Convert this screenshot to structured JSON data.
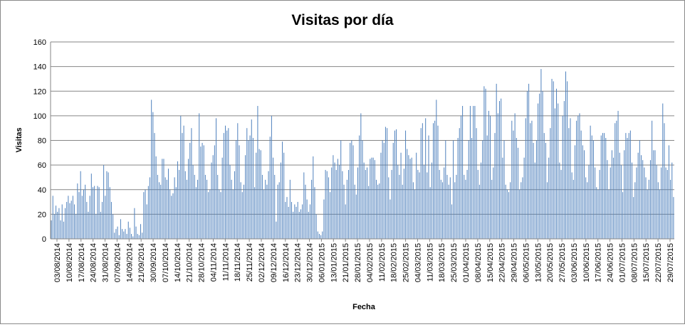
{
  "chart_data": {
    "type": "bar",
    "title": "Visitas por día",
    "xlabel": "Fecha",
    "ylabel": "Visitas",
    "ylim": [
      0,
      160
    ],
    "y_ticks": [
      0,
      20,
      40,
      60,
      80,
      100,
      120,
      140,
      160
    ],
    "grid": "horizontal",
    "legend": "none",
    "bar_color": "#4F81BD",
    "grid_color": "#868686",
    "x_tick_labels": [
      "03/08/2014",
      "10/08/2014",
      "17/08/2014",
      "24/08/2014",
      "31/08/2014",
      "07/09/2014",
      "14/09/2014",
      "21/09/2014",
      "30/09/2014",
      "07/10/2014",
      "14/10/2014",
      "21/10/2014",
      "28/10/2014",
      "04/11/2014",
      "11/11/2014",
      "18/11/2014",
      "25/11/2014",
      "02/12/2014",
      "09/12/2014",
      "16/12/2014",
      "23/12/2014",
      "30/12/2014",
      "06/01/2015",
      "13/01/2015",
      "21/01/2015",
      "28/01/2015",
      "04/02/2015",
      "11/02/2015",
      "18/02/2015",
      "25/02/2015",
      "04/03/2015",
      "11/03/2015",
      "18/03/2015",
      "25/03/2015",
      "01/04/2015",
      "08/04/2015",
      "15/04/2015",
      "22/04/2015",
      "29/04/2015",
      "06/05/2015",
      "13/05/2015",
      "20/05/2015",
      "27/05/2015",
      "03/06/2015",
      "10/06/2015",
      "17/06/2015",
      "24/06/2015",
      "01/07/2015",
      "08/07/2015",
      "15/07/2015",
      "22/07/2015",
      "29/07/2015"
    ],
    "values": [
      15,
      35,
      20,
      27,
      22,
      25,
      15,
      28,
      14,
      25,
      30,
      35,
      29,
      31,
      35,
      28,
      20,
      45,
      38,
      55,
      35,
      40,
      44,
      30,
      22,
      35,
      53,
      42,
      43,
      20,
      43,
      42,
      22,
      30,
      60,
      35,
      55,
      54,
      42,
      30,
      20,
      5,
      8,
      10,
      3,
      16,
      8,
      6,
      8,
      4,
      14,
      9,
      4,
      2,
      25,
      10,
      4,
      3,
      12,
      5,
      38,
      40,
      28,
      43,
      50,
      113,
      103,
      86,
      67,
      52,
      46,
      44,
      65,
      65,
      50,
      48,
      57,
      40,
      35,
      37,
      50,
      42,
      63,
      56,
      100,
      86,
      92,
      55,
      48,
      65,
      78,
      90,
      60,
      52,
      42,
      48,
      102,
      75,
      78,
      76,
      52,
      48,
      38,
      40,
      62,
      68,
      76,
      98,
      52,
      40,
      38,
      66,
      86,
      92,
      88,
      90,
      60,
      48,
      40,
      55,
      80,
      94,
      76,
      46,
      38,
      44,
      68,
      90,
      80,
      84,
      97,
      82,
      42,
      70,
      108,
      73,
      72,
      52,
      40,
      48,
      44,
      55,
      83,
      100,
      66,
      52,
      14,
      44,
      46,
      62,
      79,
      70,
      30,
      34,
      26,
      48,
      30,
      22,
      28,
      26,
      30,
      22,
      24,
      28,
      54,
      44,
      32,
      22,
      28,
      48,
      67,
      42,
      20,
      6,
      4,
      3,
      6,
      32,
      56,
      55,
      50,
      38,
      58,
      68,
      62,
      56,
      65,
      60,
      80,
      55,
      44,
      28,
      48,
      56,
      78,
      80,
      76,
      44,
      36,
      58,
      84,
      102,
      80,
      62,
      56,
      58,
      43,
      65,
      66,
      66,
      64,
      48,
      44,
      45,
      70,
      80,
      78,
      91,
      90,
      50,
      32,
      56,
      78,
      88,
      89,
      60,
      52,
      70,
      44,
      57,
      88,
      73,
      68,
      65,
      66,
      46,
      40,
      70,
      56,
      54,
      90,
      94,
      60,
      98,
      54,
      84,
      42,
      62,
      94,
      96,
      113,
      92,
      56,
      48,
      46,
      58,
      80,
      52,
      44,
      50,
      28,
      80,
      46,
      52,
      82,
      90,
      100,
      108,
      52,
      48,
      56,
      80,
      108,
      82,
      108,
      108,
      90,
      56,
      44,
      62,
      80,
      124,
      122,
      84,
      104,
      100,
      48,
      58,
      86,
      126,
      102,
      112,
      114,
      66,
      80,
      44,
      40,
      38,
      46,
      96,
      88,
      102,
      82,
      74,
      40,
      46,
      50,
      66,
      98,
      120,
      126,
      94,
      96,
      78,
      62,
      80,
      110,
      118,
      138,
      120,
      86,
      78,
      46,
      66,
      90,
      130,
      128,
      106,
      122,
      110,
      62,
      56,
      100,
      112,
      136,
      128,
      90,
      98,
      54,
      48,
      76,
      96,
      100,
      102,
      88,
      76,
      72,
      50,
      46,
      60,
      92,
      84,
      80,
      58,
      42,
      40,
      56,
      84,
      86,
      86,
      82,
      64,
      40,
      58,
      72,
      66,
      94,
      96,
      104,
      70,
      60,
      38,
      72,
      86,
      82,
      86,
      88,
      62,
      34,
      46,
      58,
      70,
      80,
      68,
      64,
      58,
      50,
      40,
      48,
      64,
      96,
      72,
      72,
      60,
      46,
      40,
      58,
      110,
      94,
      58,
      56,
      76,
      48,
      62,
      34
    ]
  }
}
